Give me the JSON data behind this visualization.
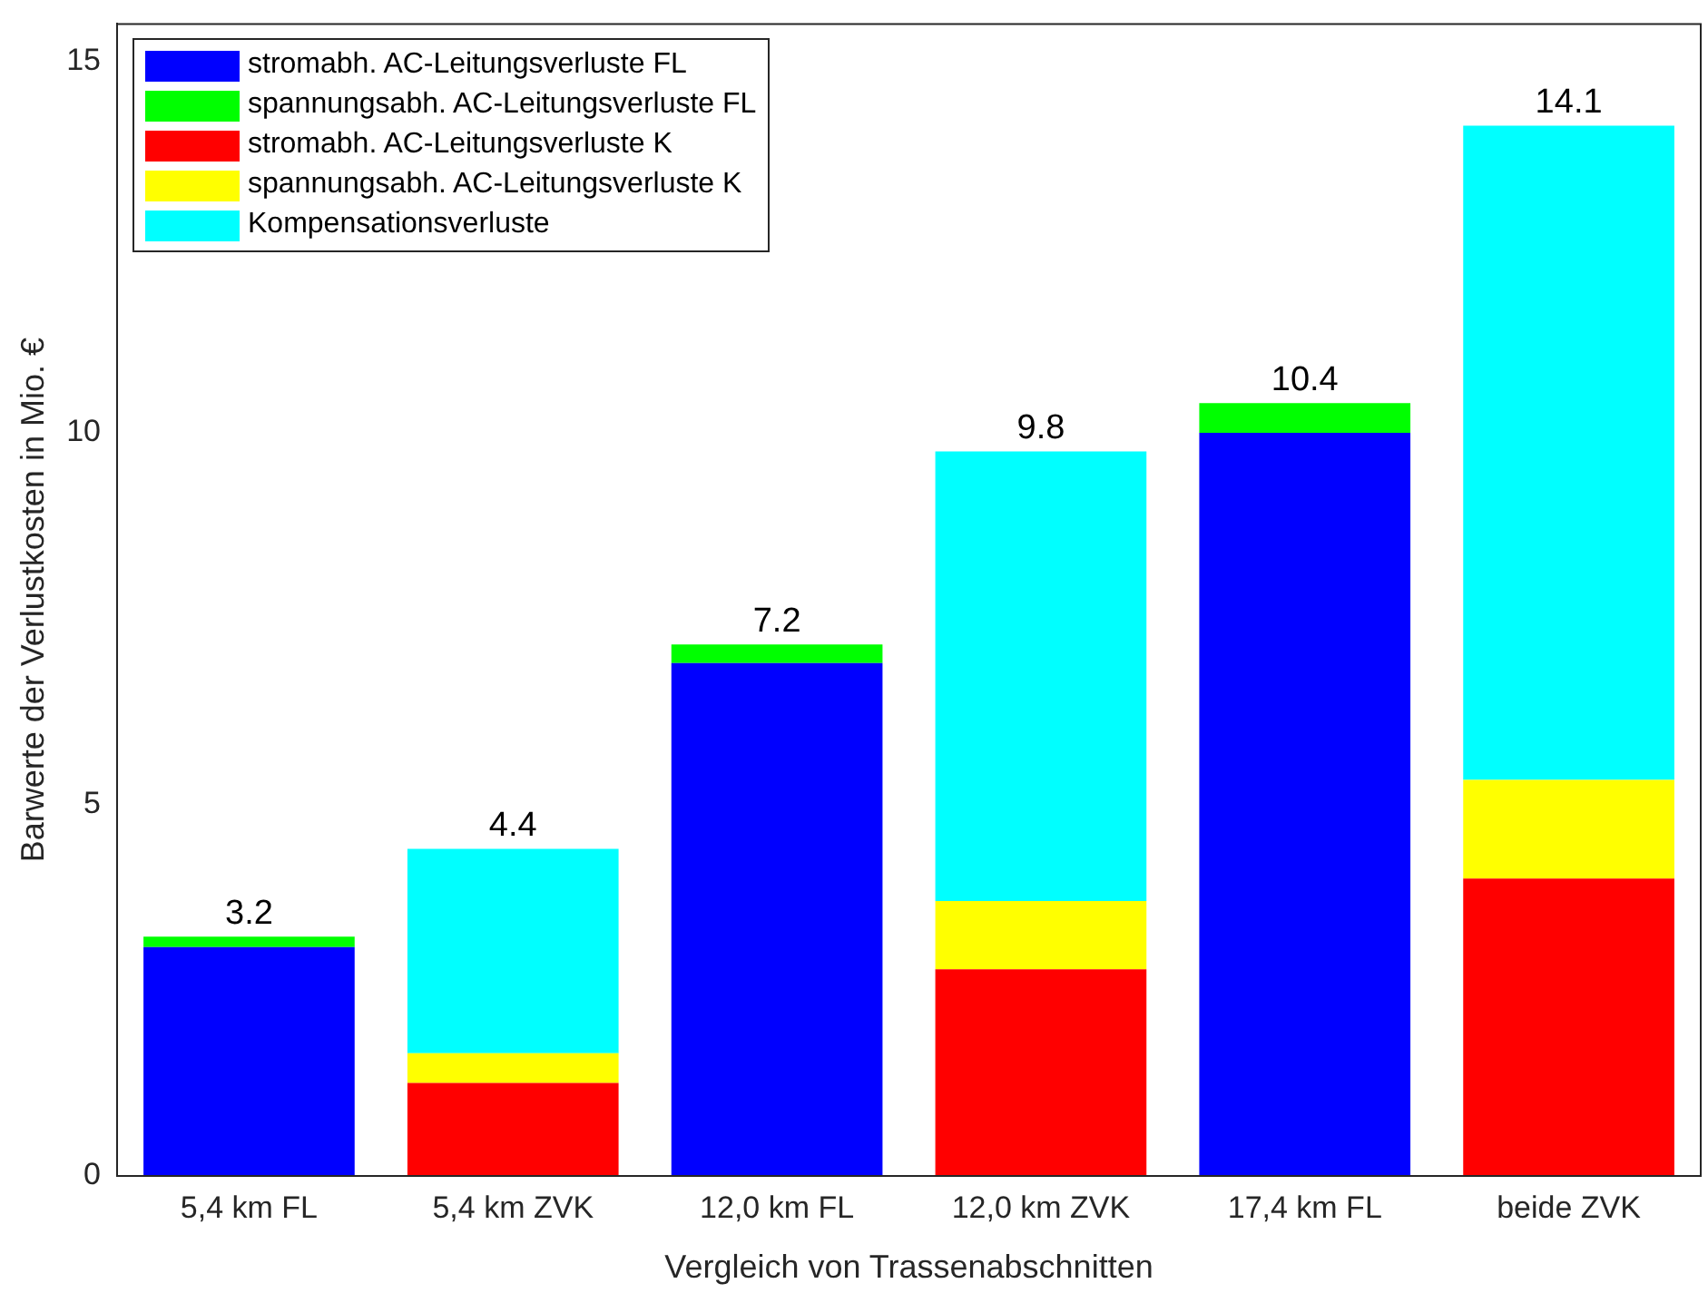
{
  "chart_data": {
    "type": "bar",
    "stacked": true,
    "xlabel": "Vergleich von Trassenabschnitten",
    "ylabel": "Barwerte der Verlustkosten in Mio. €",
    "categories": [
      "5,4 km FL",
      "5,4 km ZVK",
      "12,0 km FL",
      "12,0 km ZVK",
      "17,4 km FL",
      "beide ZVK"
    ],
    "series": [
      {
        "name": "stromabh. AC-Leitungsverluste FL",
        "color": "#0000ff",
        "values": [
          3.08,
          null,
          6.9,
          null,
          10.0,
          null
        ]
      },
      {
        "name": "spannungsabh. AC-Leitungsverluste FL",
        "color": "#00ff00",
        "values": [
          0.14,
          null,
          0.25,
          null,
          0.4,
          null
        ]
      },
      {
        "name": "stromabh. AC-Leitungsverluste K",
        "color": "#ff0000",
        "values": [
          null,
          1.25,
          null,
          2.78,
          null,
          4.0
        ]
      },
      {
        "name": "spannungsabh. AC-Leitungsverluste K",
        "color": "#ffff00",
        "values": [
          null,
          0.4,
          null,
          0.92,
          null,
          1.33
        ]
      },
      {
        "name": "Kompensationsverluste",
        "color": "#00ffff",
        "values": [
          null,
          2.75,
          null,
          6.05,
          null,
          8.8
        ]
      }
    ],
    "totals": [
      "3.2",
      "4.4",
      "7.2",
      "9.8",
      "10.4",
      "14.1"
    ],
    "ylim": [
      0,
      15.5
    ],
    "yticks": [
      0,
      5,
      10,
      15
    ],
    "grid": false,
    "legend": "top left"
  }
}
